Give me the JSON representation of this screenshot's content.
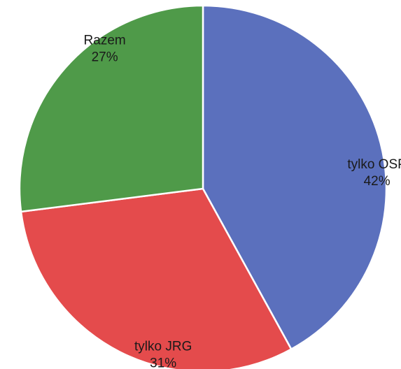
{
  "chart_data": {
    "type": "pie",
    "title": "",
    "slices": [
      {
        "name": "tylko OSP",
        "value": 42,
        "label": "42%",
        "color": "#5b70bd"
      },
      {
        "name": "tylko JRG",
        "value": 31,
        "label": "31%",
        "color": "#e44b4c"
      },
      {
        "name": "Razem",
        "value": 27,
        "label": "27%",
        "color": "#4f9a49"
      }
    ],
    "start_angle_deg": 0,
    "direction": "clockwise",
    "legend": "none",
    "label_position": "inside-edge",
    "slice_border_color": "#ffffff"
  }
}
